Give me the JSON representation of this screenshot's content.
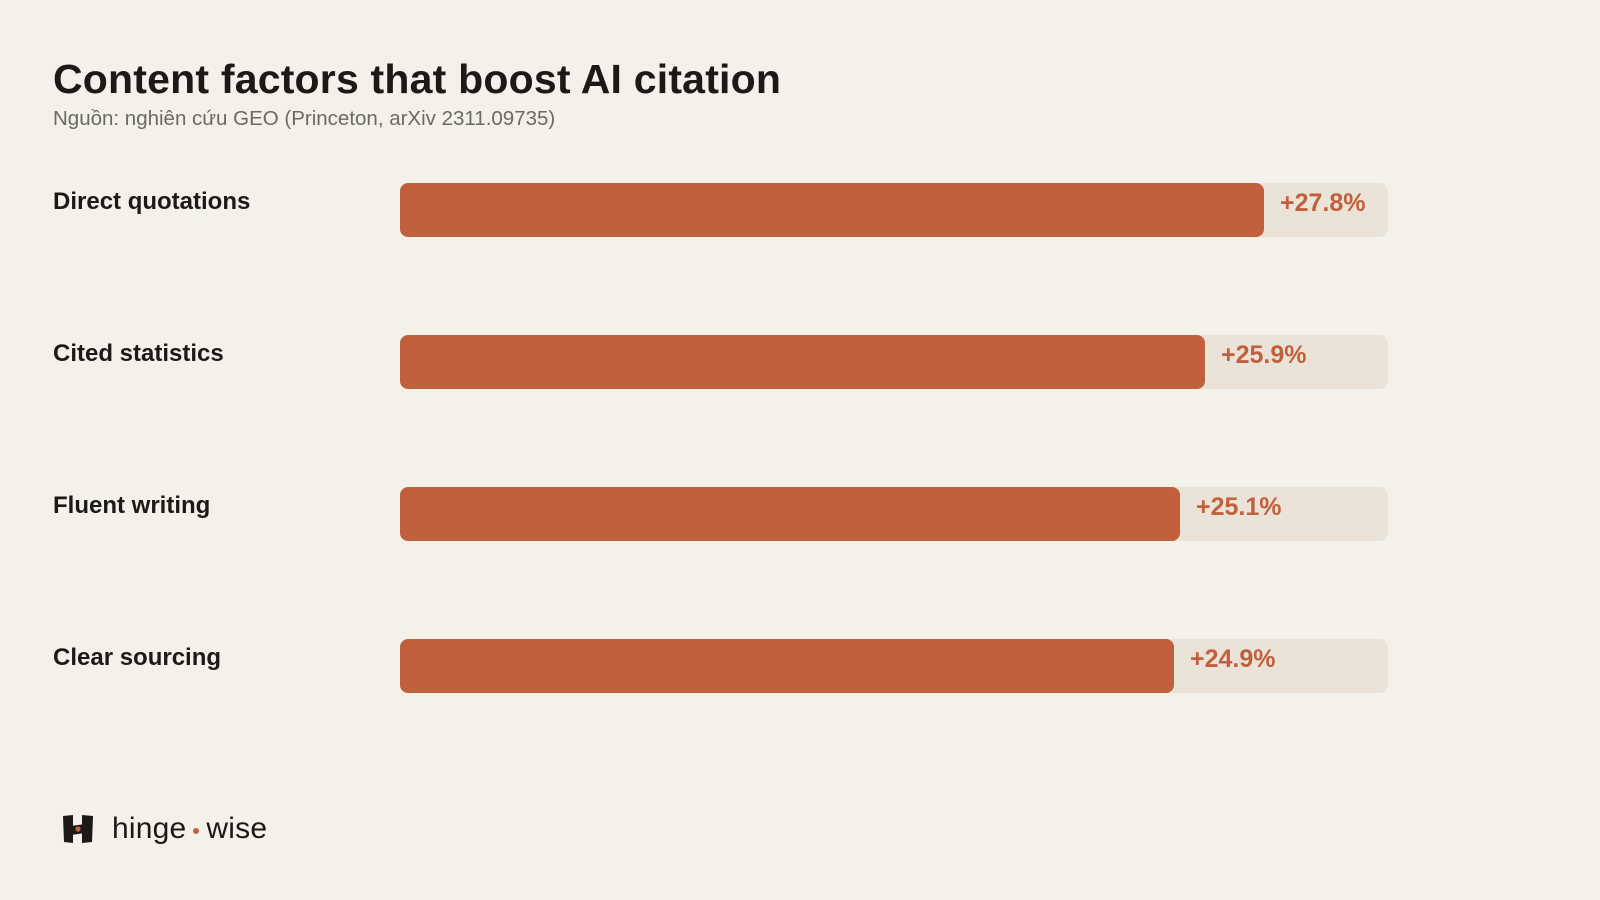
{
  "page": {
    "title": "Content factors that boost AI citation",
    "subtitle": "Nguồn: nghiên cứu GEO (Princeton, arXiv 2311.09735)"
  },
  "brand": {
    "name_left": "hinge",
    "name_right": "wise",
    "icon": "hinge-logo-icon"
  },
  "colors": {
    "background": "#f4f0ea",
    "bar_fill": "#c0603d",
    "bar_track": "#ebe3d7",
    "text": "#1c1a17",
    "subtext": "#6d6862"
  },
  "chart_data": {
    "type": "bar",
    "orientation": "horizontal",
    "title": "Content factors that boost AI citation",
    "subtitle": "Nguồn: nghiên cứu GEO (Princeton, arXiv 2311.09735)",
    "categories": [
      "Direct quotations",
      "Cited statistics",
      "Fluent writing",
      "Clear sourcing"
    ],
    "values": [
      27.8,
      25.9,
      25.1,
      24.9
    ],
    "value_labels": [
      "+27.8%",
      "+25.9%",
      "+25.1%",
      "+24.9%"
    ],
    "xlim": [
      0,
      31.8
    ],
    "grid": false,
    "legend": "none"
  }
}
